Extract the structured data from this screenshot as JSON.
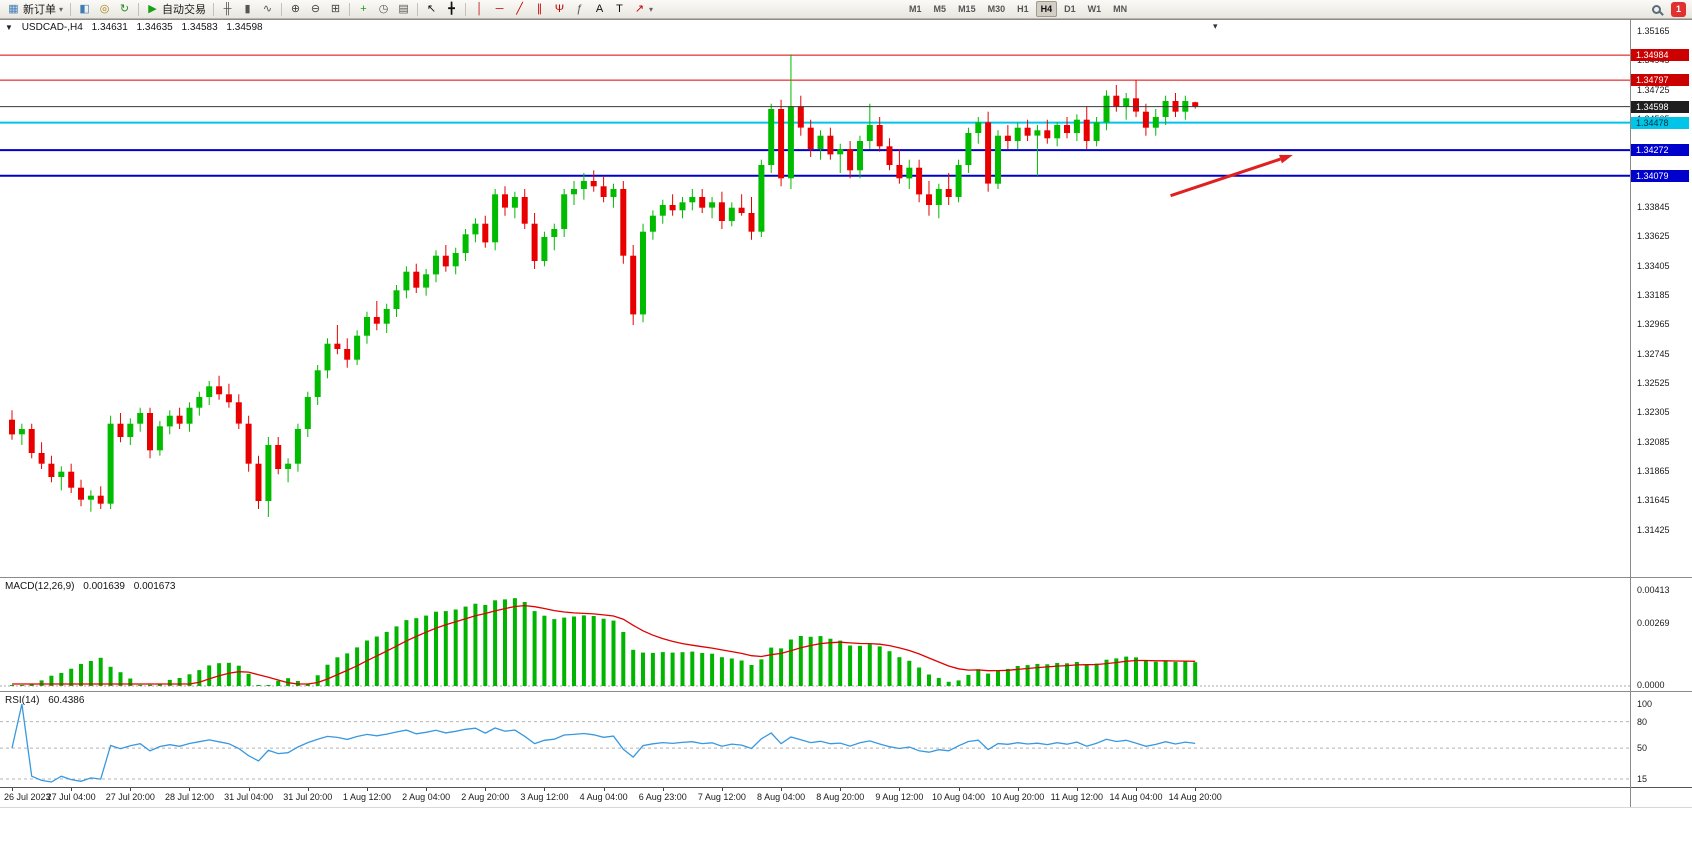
{
  "toolbar": {
    "items": [
      {
        "type": "button",
        "name": "new-order-button",
        "icon": "new-order-icon",
        "glyph": "▦",
        "color": "#3f7cb6",
        "label": "新订单",
        "caret": true
      },
      {
        "type": "sep"
      },
      {
        "type": "icon",
        "name": "charts-button",
        "icon": "chart-window-icon",
        "glyph": "◧",
        "color": "#3f7cb6"
      },
      {
        "type": "icon",
        "name": "profiles-button",
        "icon": "profiles-icon",
        "glyph": "◎",
        "color": "#a8841c"
      },
      {
        "type": "icon",
        "name": "refresh-button",
        "icon": "refresh-icon",
        "glyph": "↻",
        "color": "#2a8a2a"
      },
      {
        "type": "sep"
      },
      {
        "type": "button",
        "name": "autotrading-button",
        "icon": "autotrading-play-icon",
        "glyph": "▶",
        "color": "#18a018",
        "label": "自动交易"
      },
      {
        "type": "sep"
      },
      {
        "type": "icon",
        "name": "bar-chart-button",
        "icon": "bar-chart-icon",
        "glyph": "╫",
        "color": "#555555"
      },
      {
        "type": "icon",
        "name": "candle-chart-button",
        "icon": "candlestick-icon",
        "glyph": "▮",
        "color": "#555555"
      },
      {
        "type": "icon",
        "name": "line-chart-button",
        "icon": "line-chart-icon",
        "glyph": "∿",
        "color": "#555555"
      },
      {
        "type": "sep"
      },
      {
        "type": "icon",
        "name": "zoom-in-button",
        "icon": "zoom-in-icon",
        "glyph": "⊕",
        "color": "#444444"
      },
      {
        "type": "icon",
        "name": "zoom-out-button",
        "icon": "zoom-out-icon",
        "glyph": "⊖",
        "color": "#444444"
      },
      {
        "type": "icon",
        "name": "tile-windows-button",
        "icon": "tile-windows-icon",
        "glyph": "⊞",
        "color": "#444444"
      },
      {
        "type": "sep"
      },
      {
        "type": "icon",
        "name": "indicators-button",
        "icon": "add-indicator-icon",
        "glyph": "+",
        "color": "#18a018"
      },
      {
        "type": "icon",
        "name": "periods-button",
        "icon": "clock-icon",
        "glyph": "◷",
        "color": "#555555"
      },
      {
        "type": "icon",
        "name": "templates-button",
        "icon": "template-icon",
        "glyph": "▤",
        "color": "#555555"
      },
      {
        "type": "sep"
      },
      {
        "type": "icon",
        "name": "cursor-button",
        "icon": "cursor-icon",
        "glyph": "↖",
        "color": "#111111"
      },
      {
        "type": "icon",
        "name": "crosshair-button",
        "icon": "crosshair-icon",
        "glyph": "╋",
        "color": "#111111"
      },
      {
        "type": "sep"
      },
      {
        "type": "icon",
        "name": "vertical-line-button",
        "icon": "vertical-line-icon",
        "glyph": "│",
        "color": "#c00000"
      },
      {
        "type": "icon",
        "name": "horizontal-line-button",
        "icon": "horizontal-line-icon",
        "glyph": "─",
        "color": "#c00000"
      },
      {
        "type": "icon",
        "name": "trendline-button",
        "icon": "trendline-icon",
        "glyph": "╱",
        "color": "#c00000"
      },
      {
        "type": "icon",
        "name": "channel-button",
        "icon": "equidistant-channel-icon",
        "glyph": "∥",
        "color": "#c00000"
      },
      {
        "type": "icon",
        "name": "pitchfork-button",
        "icon": "pitchfork-icon",
        "glyph": "Ψ",
        "color": "#c00000"
      },
      {
        "type": "icon",
        "name": "fibonacci-button",
        "icon": "fibonacci-icon",
        "glyph": "ƒ",
        "color": "#555555"
      },
      {
        "type": "icon",
        "name": "text-button",
        "icon": "text-icon",
        "glyph": "A",
        "color": "#111111"
      },
      {
        "type": "icon",
        "name": "label-button",
        "icon": "label-icon",
        "glyph": "T",
        "color": "#111111"
      },
      {
        "type": "button",
        "name": "arrows-button",
        "icon": "arrow-tools-icon",
        "glyph": "↗",
        "color": "#c00000",
        "caret": true
      }
    ],
    "timeframes": [
      "M1",
      "M5",
      "M15",
      "M30",
      "H1",
      "H4",
      "D1",
      "W1",
      "MN"
    ],
    "active_timeframe": "H4",
    "notification_count": "1"
  },
  "chart": {
    "caret": "▼",
    "symbol_period": "USDCAD-,H4",
    "open": "1.34631",
    "high": "1.34635",
    "low": "1.34583",
    "close": "1.34598",
    "shift_marker": "▾"
  },
  "price_axis": {
    "labels": [
      "1.35165",
      "1.34945",
      "1.34725",
      "1.34505",
      "1.34285",
      "1.34065",
      "1.33845",
      "1.33625",
      "1.33405",
      "1.33185",
      "1.32965",
      "1.32745",
      "1.32525",
      "1.32305",
      "1.32085",
      "1.31865",
      "1.31645",
      "1.31425"
    ],
    "badges": [
      {
        "value": "1.34984",
        "price": 1.34984,
        "bg": "#cc0000",
        "fg": "#ffffff"
      },
      {
        "value": "1.34797",
        "price": 1.34797,
        "bg": "#cc0000",
        "fg": "#ffffff"
      },
      {
        "value": "1.34598",
        "price": 1.34598,
        "bg": "#1f1f1f",
        "fg": "#ffffff"
      },
      {
        "value": "1.34478",
        "price": 1.34478,
        "bg": "#00c4e8",
        "fg": "#00303a"
      },
      {
        "value": "1.34272",
        "price": 1.34272,
        "bg": "#0000cc",
        "fg": "#ffffff"
      },
      {
        "value": "1.34079",
        "price": 1.34079,
        "bg": "#0000cc",
        "fg": "#ffffff"
      }
    ]
  },
  "time_axis": {
    "labels": [
      "26 Jul 2023",
      "27 Jul 04:00",
      "27 Jul 20:00",
      "28 Jul 12:00",
      "31 Jul 04:00",
      "31 Jul 20:00",
      "1 Aug 12:00",
      "2 Aug 04:00",
      "2 Aug 20:00",
      "3 Aug 12:00",
      "4 Aug 04:00",
      "6 Aug 23:00",
      "7 Aug 12:00",
      "8 Aug 04:00",
      "8 Aug 20:00",
      "9 Aug 12:00",
      "10 Aug 04:00",
      "10 Aug 20:00",
      "11 Aug 12:00",
      "14 Aug 04:00",
      "14 Aug 20:00"
    ]
  },
  "macd": {
    "title": "MACD(12,26,9)",
    "value_main": "0.001639",
    "value_signal": "0.001673",
    "axis": [
      "0.00413",
      "0.00269",
      "0.0000"
    ],
    "histogram_color": "#00b400",
    "signal_color": "#e00000"
  },
  "rsi": {
    "title": "RSI(14)",
    "value": "60.4386",
    "levels": [
      "100",
      "80",
      "50",
      "15"
    ],
    "line_color": "#3898e0"
  },
  "chart_data": {
    "type": "candlestick",
    "symbol": "USDCAD-",
    "timeframe": "H4",
    "title": "USDCAD-,H4 1.34631 1.34635 1.34583 1.34598",
    "colors": {
      "up": "#00bb00",
      "down": "#e80000"
    },
    "price_range": [
      1.3107,
      1.35255
    ],
    "hlines": [
      {
        "price": 1.34984,
        "color": "#dd0000",
        "width": 1
      },
      {
        "price": 1.34797,
        "color": "#dd0000",
        "width": 1
      },
      {
        "price": 1.34478,
        "color": "#00c4e8",
        "width": 2
      },
      {
        "price": 1.34272,
        "color": "#0000cc",
        "width": 2
      },
      {
        "price": 1.34079,
        "color": "#0000cc",
        "width": 2
      }
    ],
    "price_line": {
      "price": 1.34598,
      "color": "#3a3a3a"
    },
    "arrow": {
      "t1": 117.5,
      "p1": 1.3393,
      "t2": 129.9,
      "p2": 1.34235,
      "color": "#e02020"
    },
    "candles": [
      [
        1.3225,
        1.3232,
        1.321,
        1.3214
      ],
      [
        1.3214,
        1.3222,
        1.3206,
        1.3218
      ],
      [
        1.3218,
        1.3222,
        1.3196,
        1.32
      ],
      [
        1.32,
        1.3208,
        1.3188,
        1.3192
      ],
      [
        1.3192,
        1.3198,
        1.3178,
        1.3182
      ],
      [
        1.3182,
        1.319,
        1.3172,
        1.3186
      ],
      [
        1.3186,
        1.3192,
        1.317,
        1.3174
      ],
      [
        1.3174,
        1.318,
        1.316,
        1.3165
      ],
      [
        1.3165,
        1.3172,
        1.3156,
        1.3168
      ],
      [
        1.3168,
        1.3175,
        1.3158,
        1.3162
      ],
      [
        1.3162,
        1.3228,
        1.3158,
        1.3222
      ],
      [
        1.3222,
        1.323,
        1.3208,
        1.3212
      ],
      [
        1.3212,
        1.3226,
        1.3206,
        1.3222
      ],
      [
        1.3222,
        1.3234,
        1.3216,
        1.323
      ],
      [
        1.323,
        1.3234,
        1.3196,
        1.3202
      ],
      [
        1.3202,
        1.3224,
        1.3198,
        1.322
      ],
      [
        1.322,
        1.3232,
        1.3214,
        1.3228
      ],
      [
        1.3228,
        1.3234,
        1.3218,
        1.3222
      ],
      [
        1.3222,
        1.3238,
        1.3216,
        1.3234
      ],
      [
        1.3234,
        1.3246,
        1.3228,
        1.3242
      ],
      [
        1.3242,
        1.3254,
        1.3236,
        1.325
      ],
      [
        1.325,
        1.3258,
        1.324,
        1.3244
      ],
      [
        1.3244,
        1.3252,
        1.3234,
        1.3238
      ],
      [
        1.3238,
        1.3244,
        1.3218,
        1.3222
      ],
      [
        1.3222,
        1.3228,
        1.3186,
        1.3192
      ],
      [
        1.3192,
        1.3198,
        1.3158,
        1.3164
      ],
      [
        1.3164,
        1.3212,
        1.3152,
        1.3206
      ],
      [
        1.3206,
        1.3212,
        1.3184,
        1.3188
      ],
      [
        1.3188,
        1.3196,
        1.3178,
        1.3192
      ],
      [
        1.3192,
        1.3222,
        1.3186,
        1.3218
      ],
      [
        1.3218,
        1.3246,
        1.3212,
        1.3242
      ],
      [
        1.3242,
        1.3266,
        1.3236,
        1.3262
      ],
      [
        1.3262,
        1.3286,
        1.3256,
        1.3282
      ],
      [
        1.3282,
        1.3296,
        1.3274,
        1.3278
      ],
      [
        1.3278,
        1.3286,
        1.3264,
        1.327
      ],
      [
        1.327,
        1.3292,
        1.3266,
        1.3288
      ],
      [
        1.3288,
        1.3306,
        1.3282,
        1.3302
      ],
      [
        1.3302,
        1.3314,
        1.3292,
        1.3297
      ],
      [
        1.3297,
        1.3312,
        1.329,
        1.3308
      ],
      [
        1.3308,
        1.3326,
        1.3302,
        1.3322
      ],
      [
        1.3322,
        1.334,
        1.3316,
        1.3336
      ],
      [
        1.3336,
        1.3342,
        1.332,
        1.3324
      ],
      [
        1.3324,
        1.3338,
        1.3318,
        1.3334
      ],
      [
        1.3334,
        1.3352,
        1.3328,
        1.3348
      ],
      [
        1.3348,
        1.3356,
        1.3336,
        1.334
      ],
      [
        1.334,
        1.3354,
        1.3334,
        1.335
      ],
      [
        1.335,
        1.3368,
        1.3344,
        1.3364
      ],
      [
        1.3364,
        1.3376,
        1.3358,
        1.3372
      ],
      [
        1.3372,
        1.3378,
        1.3354,
        1.3358
      ],
      [
        1.3358,
        1.3398,
        1.3352,
        1.3394
      ],
      [
        1.3394,
        1.34,
        1.3378,
        1.3384
      ],
      [
        1.3384,
        1.3396,
        1.3376,
        1.3392
      ],
      [
        1.3392,
        1.3398,
        1.3368,
        1.3372
      ],
      [
        1.3372,
        1.338,
        1.3338,
        1.3344
      ],
      [
        1.3344,
        1.3366,
        1.334,
        1.3362
      ],
      [
        1.3362,
        1.3372,
        1.3352,
        1.3368
      ],
      [
        1.3368,
        1.3398,
        1.3362,
        1.3394
      ],
      [
        1.3394,
        1.3404,
        1.3386,
        1.3398
      ],
      [
        1.3398,
        1.341,
        1.339,
        1.3404
      ],
      [
        1.3404,
        1.3412,
        1.3396,
        1.34
      ],
      [
        1.34,
        1.3408,
        1.3388,
        1.3392
      ],
      [
        1.3392,
        1.3402,
        1.3384,
        1.3398
      ],
      [
        1.3398,
        1.3404,
        1.3342,
        1.3348
      ],
      [
        1.3348,
        1.3356,
        1.3296,
        1.3304
      ],
      [
        1.3304,
        1.3372,
        1.3298,
        1.3366
      ],
      [
        1.3366,
        1.3382,
        1.336,
        1.3378
      ],
      [
        1.3378,
        1.339,
        1.3372,
        1.3386
      ],
      [
        1.3386,
        1.3394,
        1.3378,
        1.3382
      ],
      [
        1.3382,
        1.3392,
        1.3376,
        1.3388
      ],
      [
        1.3388,
        1.3398,
        1.3382,
        1.3392
      ],
      [
        1.3392,
        1.3398,
        1.338,
        1.3384
      ],
      [
        1.3384,
        1.3392,
        1.3376,
        1.3388
      ],
      [
        1.3388,
        1.3396,
        1.3368,
        1.3374
      ],
      [
        1.3374,
        1.3388,
        1.337,
        1.3384
      ],
      [
        1.3384,
        1.3394,
        1.3378,
        1.338
      ],
      [
        1.338,
        1.3392,
        1.336,
        1.3366
      ],
      [
        1.3366,
        1.342,
        1.3362,
        1.3416
      ],
      [
        1.3416,
        1.3462,
        1.341,
        1.3458
      ],
      [
        1.3458,
        1.3465,
        1.34,
        1.3406
      ],
      [
        1.3406,
        1.3499,
        1.3398,
        1.346
      ],
      [
        1.346,
        1.3468,
        1.3438,
        1.3444
      ],
      [
        1.3444,
        1.345,
        1.3422,
        1.3428
      ],
      [
        1.3428,
        1.3442,
        1.342,
        1.3438
      ],
      [
        1.3438,
        1.3444,
        1.342,
        1.3424
      ],
      [
        1.3424,
        1.3432,
        1.341,
        1.3428
      ],
      [
        1.3428,
        1.3434,
        1.3406,
        1.3412
      ],
      [
        1.3412,
        1.3438,
        1.3406,
        1.3434
      ],
      [
        1.3434,
        1.3462,
        1.3428,
        1.3446
      ],
      [
        1.3446,
        1.3452,
        1.3426,
        1.343
      ],
      [
        1.343,
        1.3436,
        1.3412,
        1.3416
      ],
      [
        1.3416,
        1.3428,
        1.3402,
        1.3406
      ],
      [
        1.3406,
        1.342,
        1.3398,
        1.3414
      ],
      [
        1.3414,
        1.342,
        1.3388,
        1.3394
      ],
      [
        1.3394,
        1.3404,
        1.3378,
        1.3386
      ],
      [
        1.3386,
        1.3402,
        1.3376,
        1.3398
      ],
      [
        1.3398,
        1.341,
        1.3386,
        1.3392
      ],
      [
        1.3392,
        1.342,
        1.3388,
        1.3416
      ],
      [
        1.3416,
        1.3444,
        1.341,
        1.344
      ],
      [
        1.344,
        1.3452,
        1.3432,
        1.3448
      ],
      [
        1.3448,
        1.3456,
        1.3396,
        1.3402
      ],
      [
        1.3402,
        1.3442,
        1.3398,
        1.3438
      ],
      [
        1.3438,
        1.3446,
        1.3428,
        1.3434
      ],
      [
        1.3434,
        1.3448,
        1.3428,
        1.3444
      ],
      [
        1.3444,
        1.345,
        1.3434,
        1.3438
      ],
      [
        1.3438,
        1.3446,
        1.3408,
        1.3442
      ],
      [
        1.3442,
        1.345,
        1.3432,
        1.3436
      ],
      [
        1.3436,
        1.3448,
        1.343,
        1.3446
      ],
      [
        1.3446,
        1.3452,
        1.3436,
        1.344
      ],
      [
        1.344,
        1.3454,
        1.3434,
        1.345
      ],
      [
        1.345,
        1.346,
        1.3428,
        1.3434
      ],
      [
        1.3434,
        1.3452,
        1.343,
        1.3448
      ],
      [
        1.3448,
        1.3472,
        1.3442,
        1.3468
      ],
      [
        1.3468,
        1.3476,
        1.3456,
        1.346
      ],
      [
        1.346,
        1.347,
        1.345,
        1.3466
      ],
      [
        1.3466,
        1.348,
        1.3452,
        1.3456
      ],
      [
        1.3456,
        1.3462,
        1.3438,
        1.3444
      ],
      [
        1.3444,
        1.3458,
        1.3438,
        1.3452
      ],
      [
        1.3452,
        1.3468,
        1.3446,
        1.3464
      ],
      [
        1.3464,
        1.347,
        1.3452,
        1.3456
      ],
      [
        1.3456,
        1.3468,
        1.345,
        1.3464
      ],
      [
        1.34631,
        1.34635,
        1.34583,
        1.34598
      ]
    ],
    "indicators": [
      {
        "name": "MACD",
        "params": "12,26,9",
        "current_main": 0.001639,
        "current_signal": 0.001673
      },
      {
        "name": "RSI",
        "params": "14",
        "current": 60.4386
      }
    ]
  }
}
